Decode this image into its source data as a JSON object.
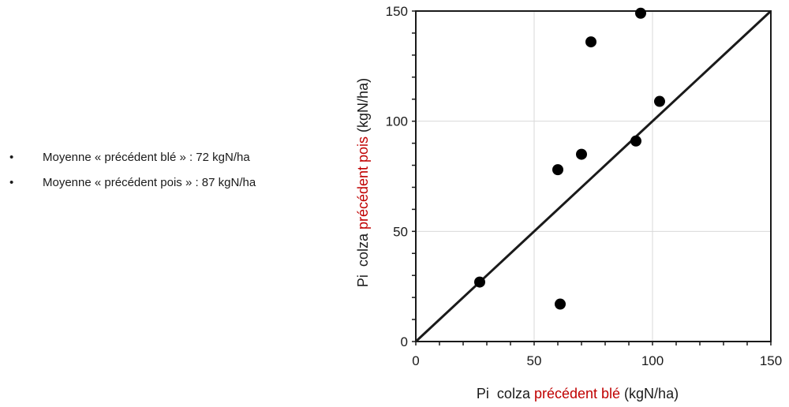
{
  "notes": [
    "Moyenne « précédent blé » : 72 kgN/ha",
    "Moyenne « précédent pois » : 87 kgN/ha"
  ],
  "colors": {
    "accent": "#c00000",
    "text": "#1a1a1a",
    "grid": "#d9d9d9"
  },
  "chart_data": {
    "type": "scatter",
    "xlabel_parts": [
      {
        "text": "Pi  colza ",
        "color": "#1a1a1a"
      },
      {
        "text": "précédent blé",
        "color": "#c00000"
      },
      {
        "text": " (kgN/ha)",
        "color": "#1a1a1a"
      }
    ],
    "ylabel_parts": [
      {
        "text": "Pi  colza ",
        "color": "#1a1a1a"
      },
      {
        "text": "précédent pois",
        "color": "#c00000"
      },
      {
        "text": " (kgN/ha)",
        "color": "#1a1a1a"
      }
    ],
    "xlim": [
      0,
      150
    ],
    "ylim": [
      0,
      150
    ],
    "xticks": [
      0,
      50,
      100,
      150
    ],
    "yticks": [
      0,
      50,
      100,
      150
    ],
    "grid": true,
    "reference_line": {
      "from": [
        0,
        0
      ],
      "to": [
        150,
        150
      ]
    },
    "points": [
      {
        "x": 27,
        "y": 27
      },
      {
        "x": 60,
        "y": 78
      },
      {
        "x": 61,
        "y": 17
      },
      {
        "x": 70,
        "y": 85
      },
      {
        "x": 74,
        "y": 136
      },
      {
        "x": 93,
        "y": 91
      },
      {
        "x": 95,
        "y": 149
      },
      {
        "x": 103,
        "y": 109
      }
    ]
  }
}
